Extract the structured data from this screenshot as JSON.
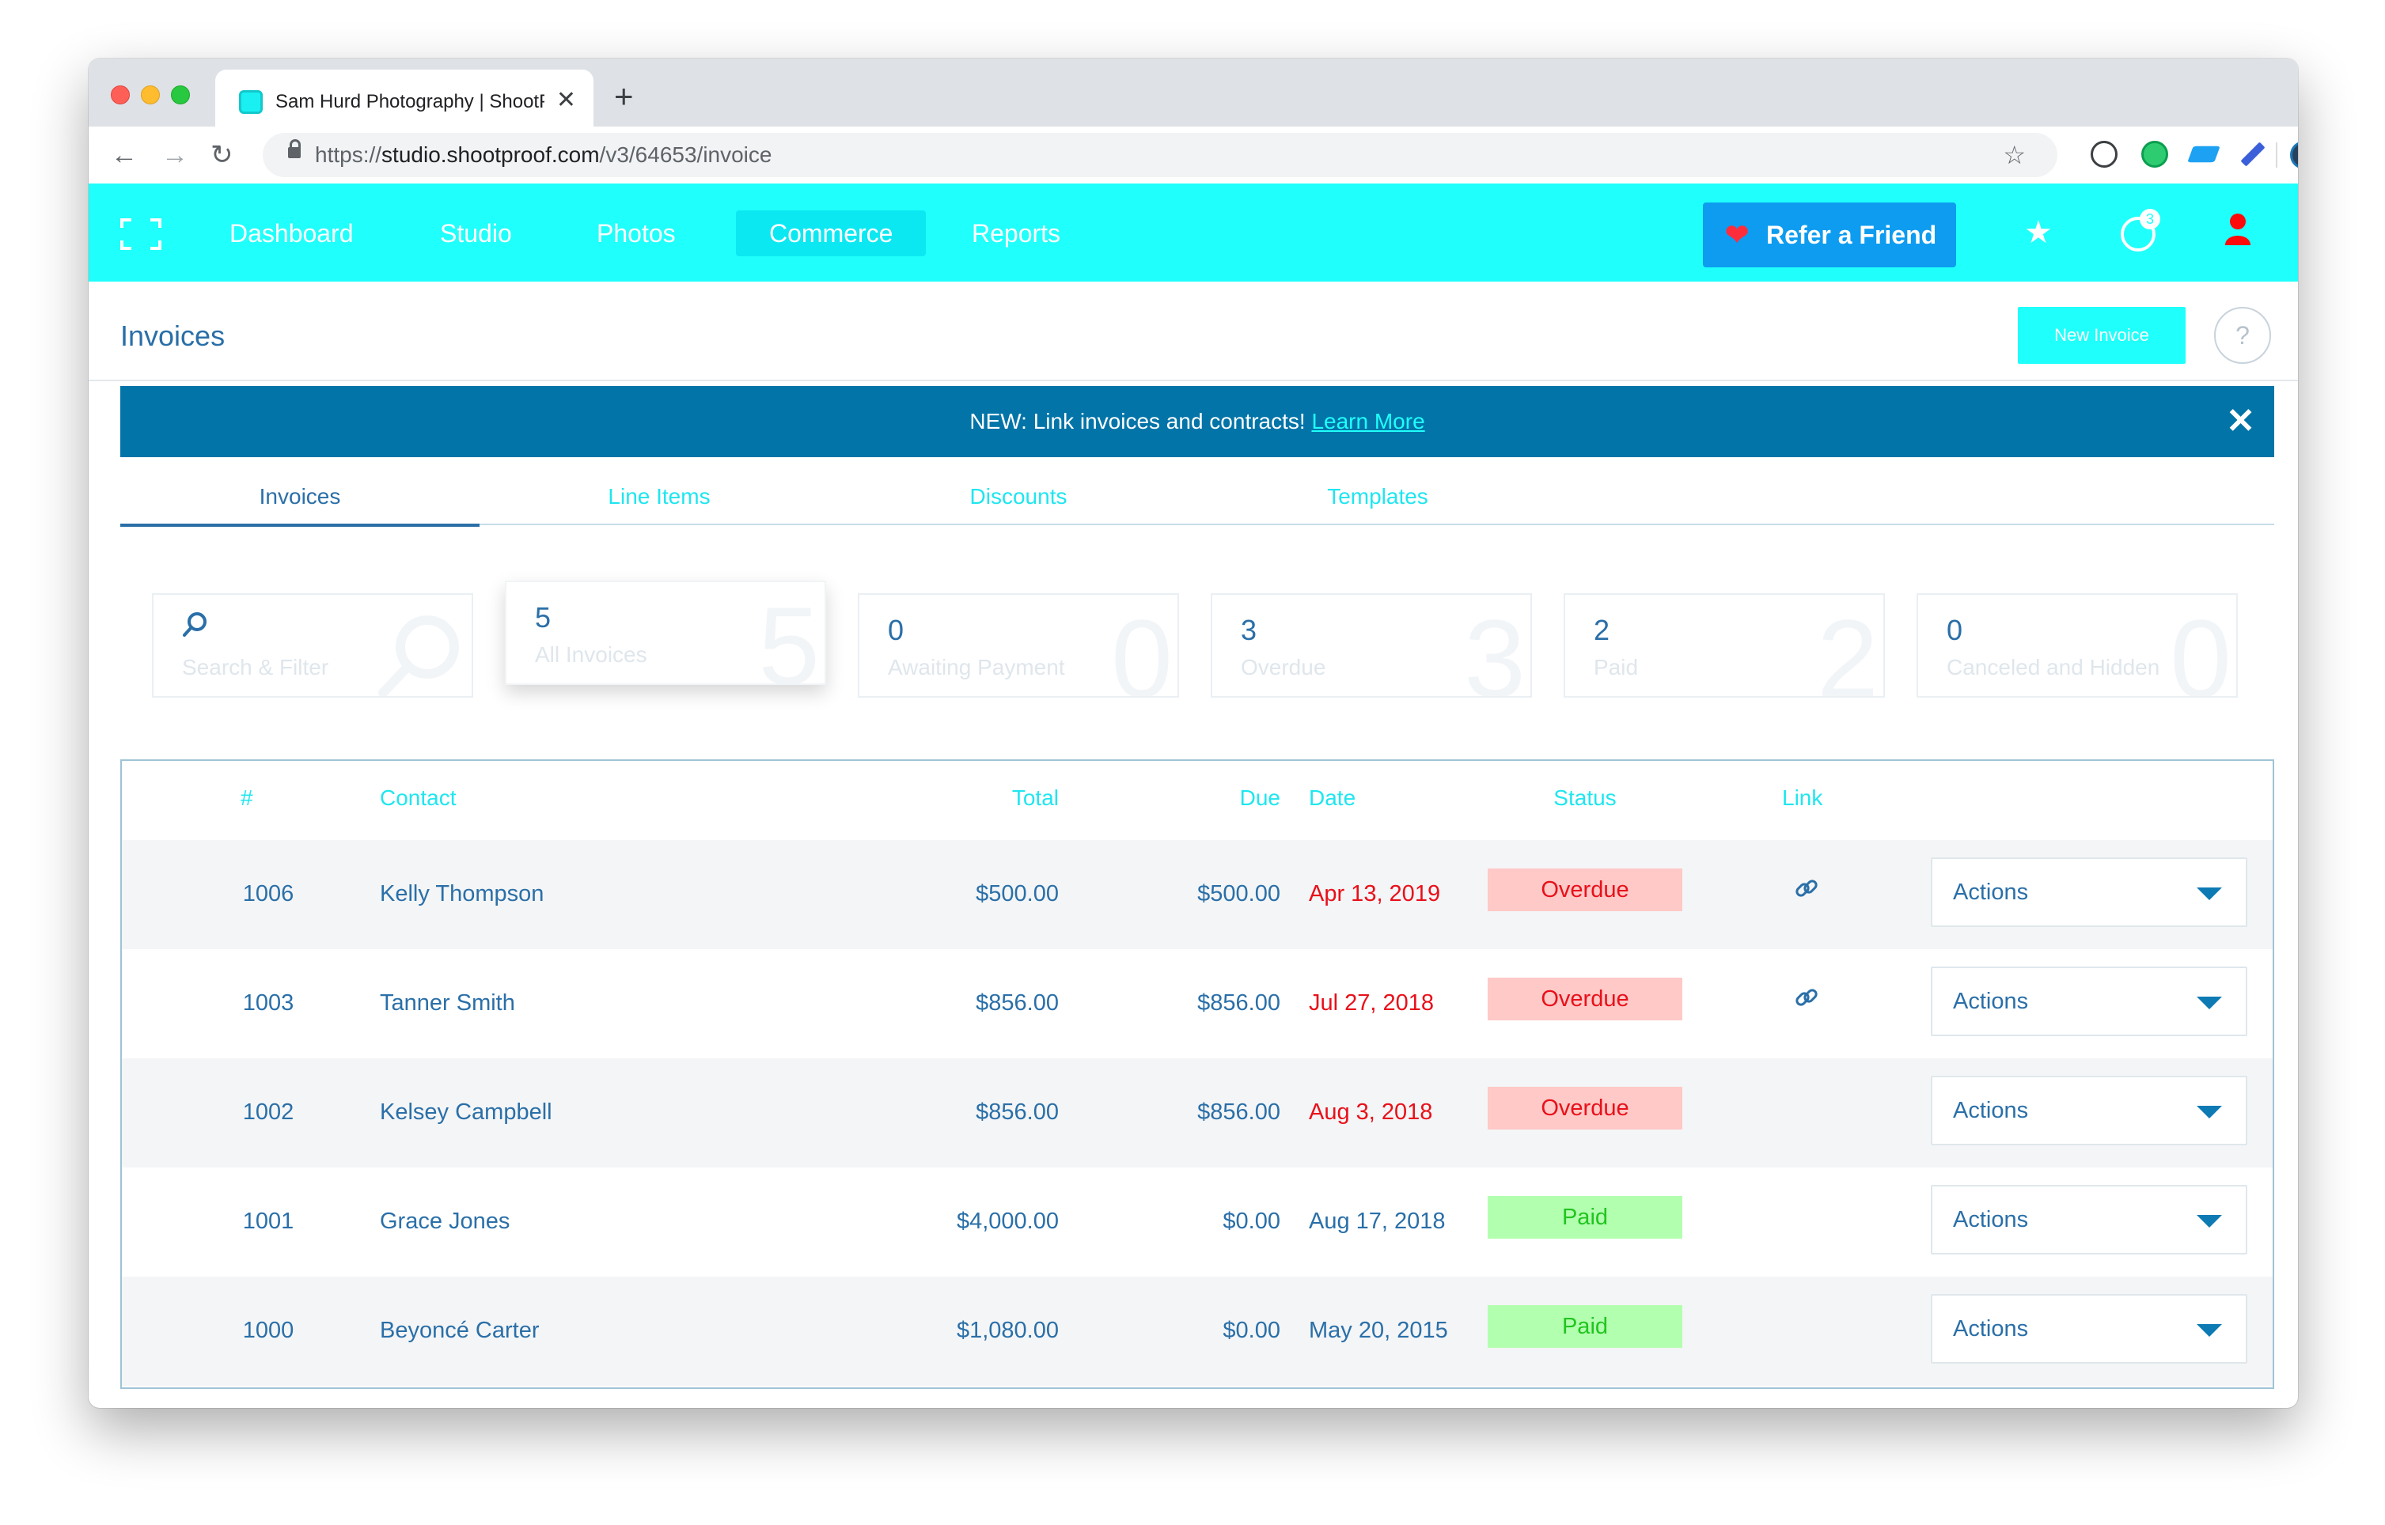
{
  "browser": {
    "tab_title": "Sam Hurd Photography | ShootProof",
    "tab_close": "✕",
    "new_tab": "+",
    "url_prefix": "https://",
    "url_host": "studio.shootproof.com",
    "url_path": "/v3/64653/invoice"
  },
  "header": {
    "nav": [
      "Dashboard",
      "Studio",
      "Photos",
      "Commerce",
      "Reports"
    ],
    "active_nav": "Commerce",
    "refer_label": "Refer a Friend",
    "notification_count": "3"
  },
  "page": {
    "title": "Invoices",
    "new_invoice_label": "New Invoice",
    "help_label": "?"
  },
  "banner": {
    "text": "NEW: Link invoices and contracts!",
    "link_label": "Learn More",
    "close": "✕"
  },
  "subtabs": [
    "Invoices",
    "Line Items",
    "Discounts",
    "Templates"
  ],
  "cards": {
    "search_label": "Search & Filter",
    "items": [
      {
        "count": "5",
        "label": "All Invoices"
      },
      {
        "count": "0",
        "label": "Awaiting Payment"
      },
      {
        "count": "3",
        "label": "Overdue"
      },
      {
        "count": "2",
        "label": "Paid"
      },
      {
        "count": "0",
        "label": "Canceled and Hidden"
      }
    ]
  },
  "table": {
    "headers": {
      "number": "#",
      "contact": "Contact",
      "total": "Total",
      "due": "Due",
      "date": "Date",
      "status": "Status",
      "link": "Link"
    },
    "actions_label": "Actions",
    "rows": [
      {
        "number": "1006",
        "contact": "Kelly Thompson",
        "total": "$500.00",
        "due": "$500.00",
        "date": "Apr 13, 2019",
        "status": "Overdue"
      },
      {
        "number": "1003",
        "contact": "Tanner Smith",
        "total": "$856.00",
        "due": "$856.00",
        "date": "Jul 27, 2018",
        "status": "Overdue"
      },
      {
        "number": "1002",
        "contact": "Kelsey Campbell",
        "total": "$856.00",
        "due": "$856.00",
        "date": "Aug 3, 2018",
        "status": "Overdue"
      },
      {
        "number": "1001",
        "contact": "Grace Jones",
        "total": "$4,000.00",
        "due": "$0.00",
        "date": "Aug 17, 2018",
        "status": "Paid"
      },
      {
        "number": "1000",
        "contact": "Beyoncé Carter",
        "total": "$1,080.00",
        "due": "$0.00",
        "date": "May 20, 2015",
        "status": "Paid"
      }
    ]
  },
  "colors": {
    "brand_cyan": "#1ffffb",
    "banner_blue": "#0274a8",
    "text_blue": "#2a6fa8",
    "overdue_red": "#e8101a",
    "paid_green": "#22c51f"
  }
}
